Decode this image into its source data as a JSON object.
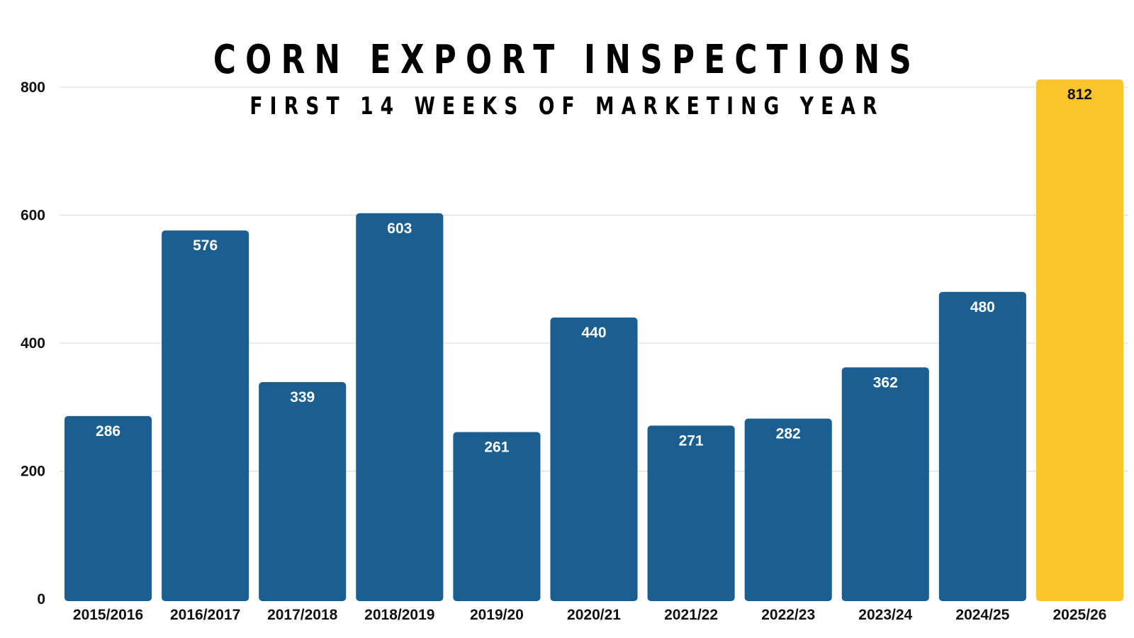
{
  "chart_data": {
    "type": "bar",
    "title": "CORN EXPORT INSPECTIONS",
    "subtitle": "FIRST 14 WEEKS OF MARKETING YEAR",
    "categories": [
      "2015/2016",
      "2016/2017",
      "2017/2018",
      "2018/2019",
      "2019/20",
      "2020/21",
      "2021/22",
      "2022/23",
      "2023/24",
      "2024/25",
      "2025/26"
    ],
    "values": [
      286,
      576,
      339,
      603,
      261,
      440,
      271,
      282,
      362,
      480,
      812
    ],
    "data_labels": [
      "286",
      "576",
      "339",
      "603",
      "261",
      "440",
      "271",
      "282",
      "362",
      "480",
      "812"
    ],
    "highlight_index": 10,
    "xlabel": "",
    "ylabel": "",
    "ylim": [
      0,
      800
    ],
    "yticks": [
      0,
      200,
      400,
      600,
      800
    ],
    "ytick_labels": [
      "0",
      "200",
      "400",
      "600",
      "800"
    ],
    "grid": true,
    "legend": "none",
    "colors": {
      "bar": "#1a5f8f",
      "highlight_bar": "#fdc52c",
      "label_on_bar": "#ffffff",
      "label_on_highlight": "#111111",
      "gridline": "#d9d9d9"
    }
  }
}
